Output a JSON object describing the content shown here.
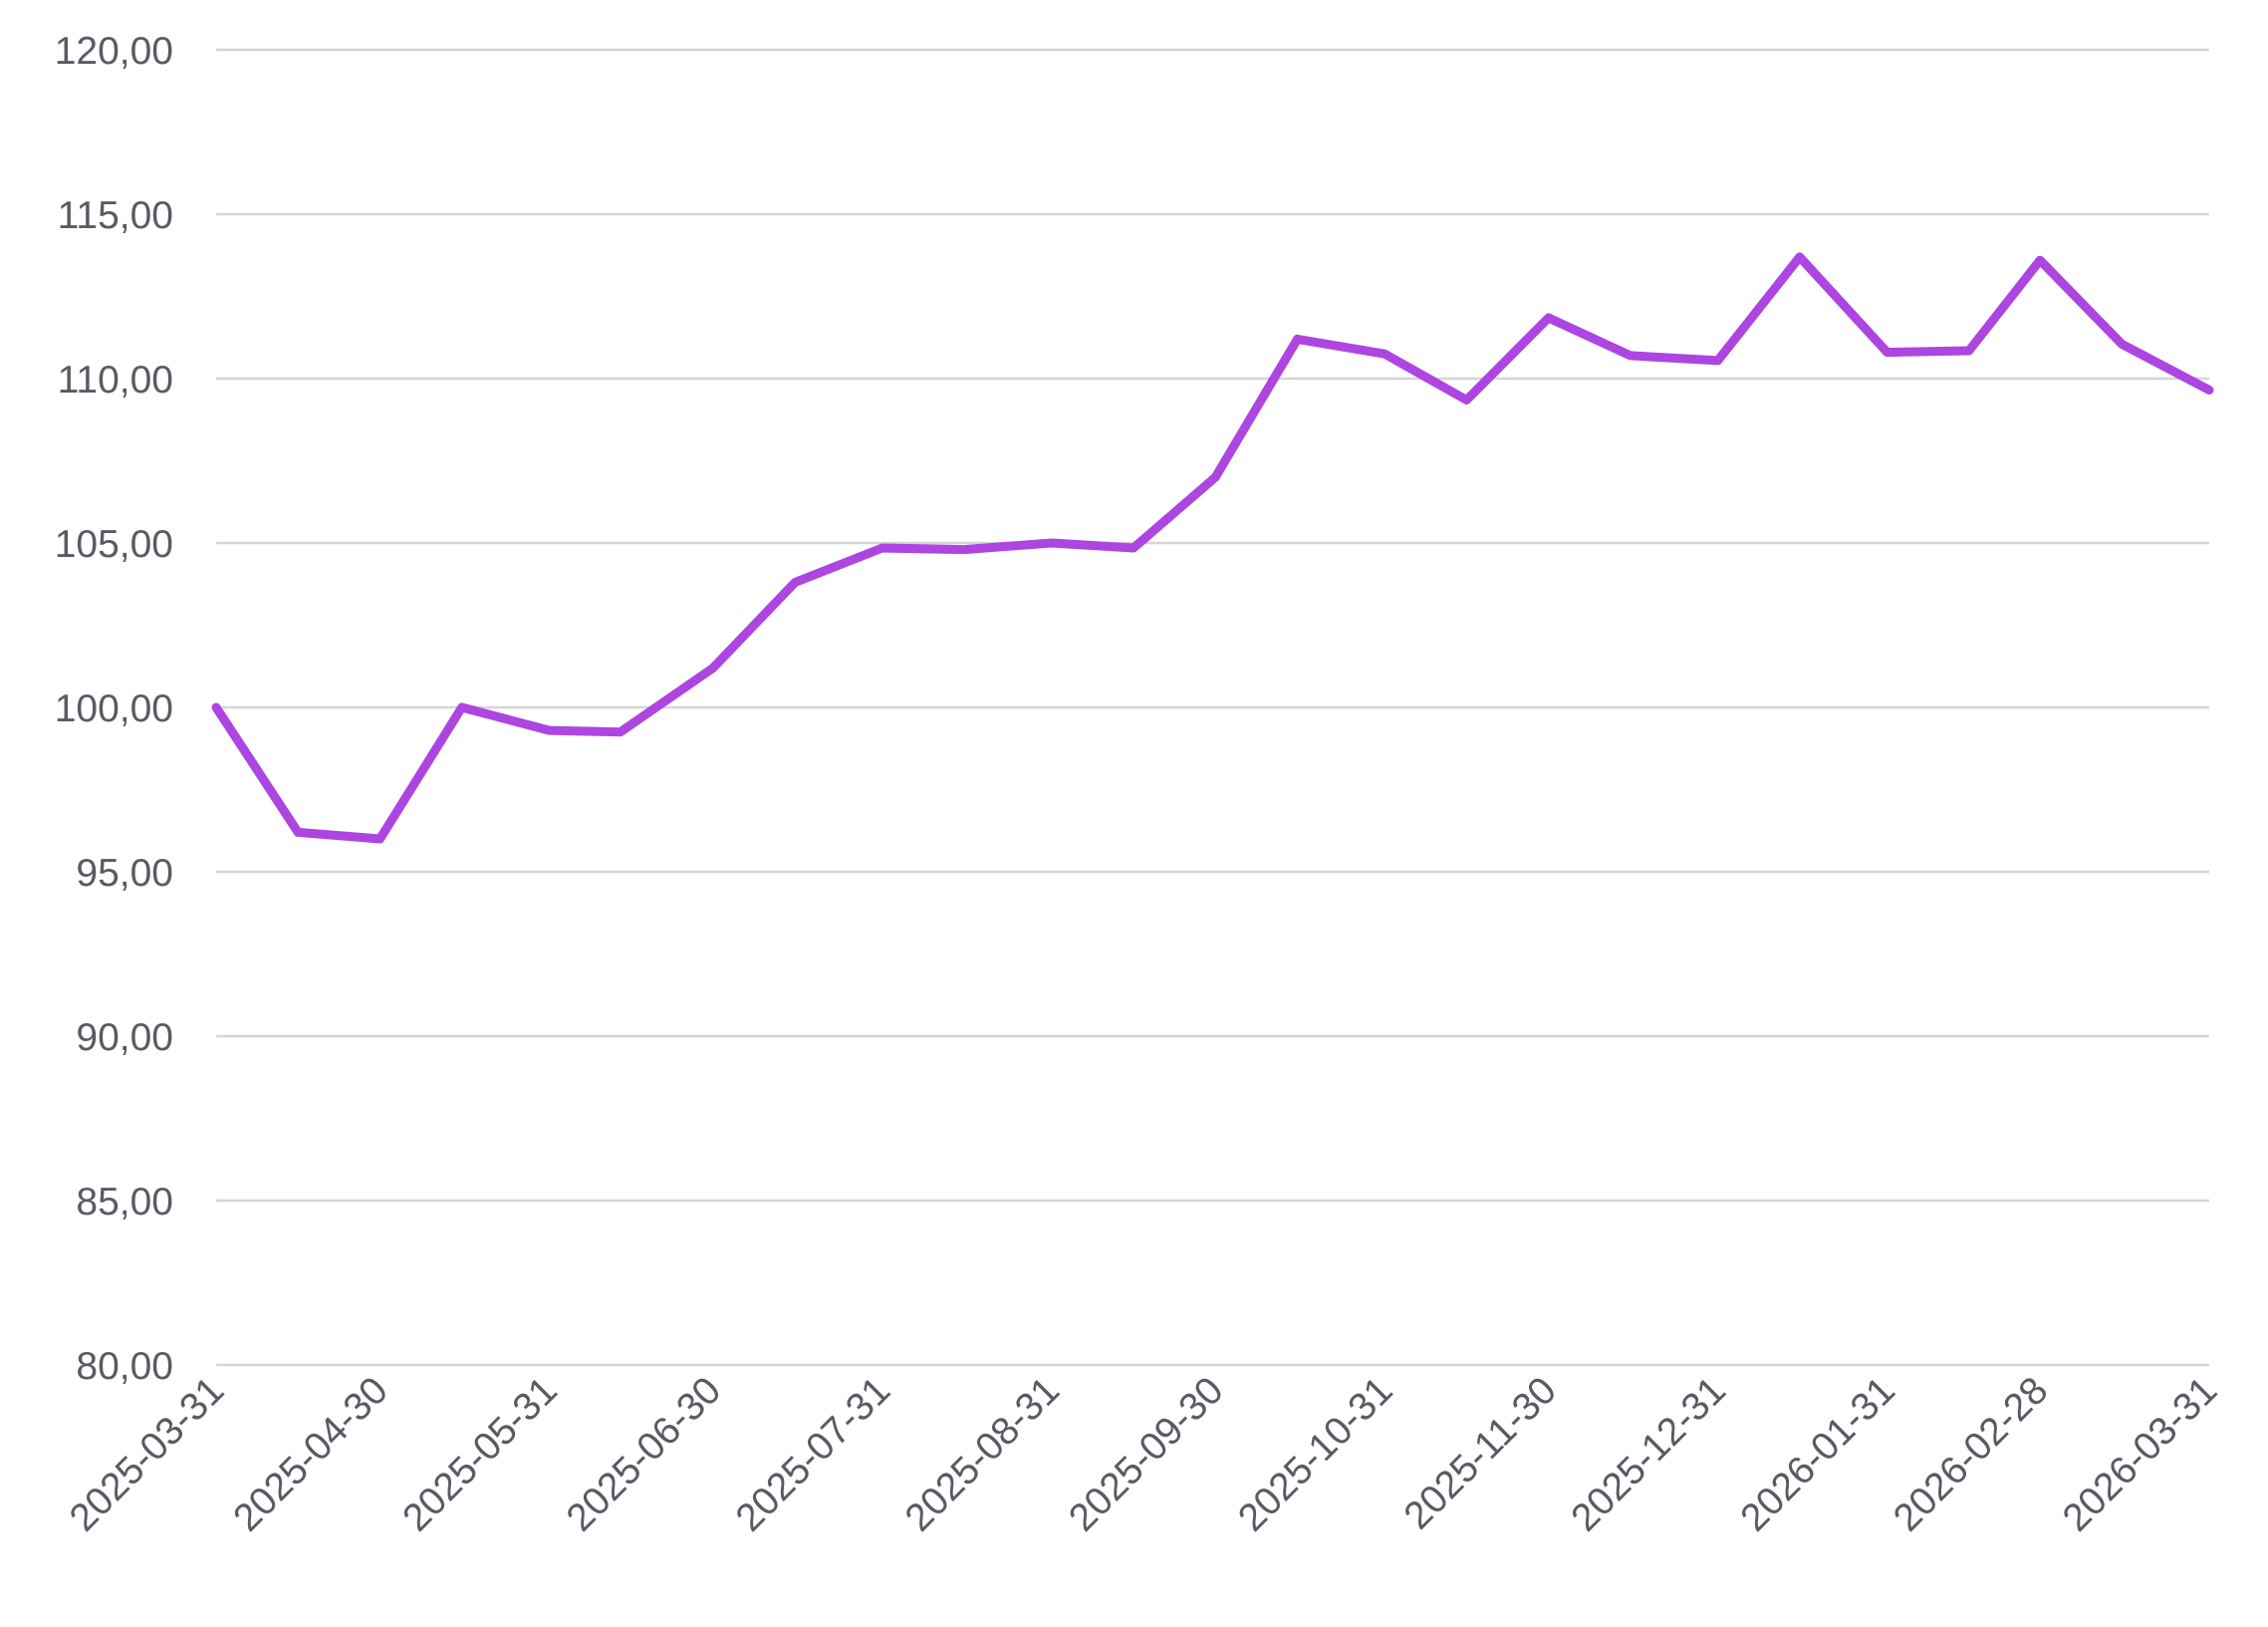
{
  "chart_data": {
    "type": "line",
    "title": "",
    "xlabel": "",
    "ylabel": "",
    "ylim": [
      80,
      120
    ],
    "y_ticks": [
      "80,00",
      "85,00",
      "90,00",
      "95,00",
      "100,00",
      "105,00",
      "110,00",
      "115,00",
      "120,00"
    ],
    "y_tick_values": [
      80,
      85,
      90,
      95,
      100,
      105,
      110,
      115,
      120
    ],
    "x_tick_labels": [
      "2025-03-31",
      "2025-04-30",
      "2025-05-31",
      "2025-06-30",
      "2025-07-31",
      "2025-08-31",
      "2025-09-30",
      "2025-10-31",
      "2025-11-30",
      "2025-12-31",
      "2026-01-31",
      "2026-02-28",
      "2026-03-31"
    ],
    "grid": true,
    "legend": "none",
    "series": [
      {
        "color": "#ad45e0",
        "points": [
          [
            "2025-03-31",
            100.0
          ],
          [
            "2025-04-15",
            96.2
          ],
          [
            "2025-04-30",
            96.0
          ],
          [
            "2025-05-15",
            100.0
          ],
          [
            "2025-05-31",
            99.3
          ],
          [
            "2025-06-13",
            99.25
          ],
          [
            "2025-06-30",
            101.2
          ],
          [
            "2025-07-15",
            103.8
          ],
          [
            "2025-07-31",
            104.85
          ],
          [
            "2025-08-15",
            104.8
          ],
          [
            "2025-08-31",
            105.0
          ],
          [
            "2025-09-15",
            104.85
          ],
          [
            "2025-09-30",
            107.0
          ],
          [
            "2025-10-15",
            111.2
          ],
          [
            "2025-10-31",
            110.75
          ],
          [
            "2025-11-15",
            109.35
          ],
          [
            "2025-11-30",
            111.85
          ],
          [
            "2025-12-15",
            110.7
          ],
          [
            "2025-12-31",
            110.55
          ],
          [
            "2026-01-15",
            113.7
          ],
          [
            "2026-01-31",
            110.8
          ],
          [
            "2026-02-15",
            110.85
          ],
          [
            "2026-02-28",
            113.6
          ],
          [
            "2026-03-15",
            111.05
          ],
          [
            "2026-03-31",
            109.65
          ]
        ]
      }
    ]
  }
}
